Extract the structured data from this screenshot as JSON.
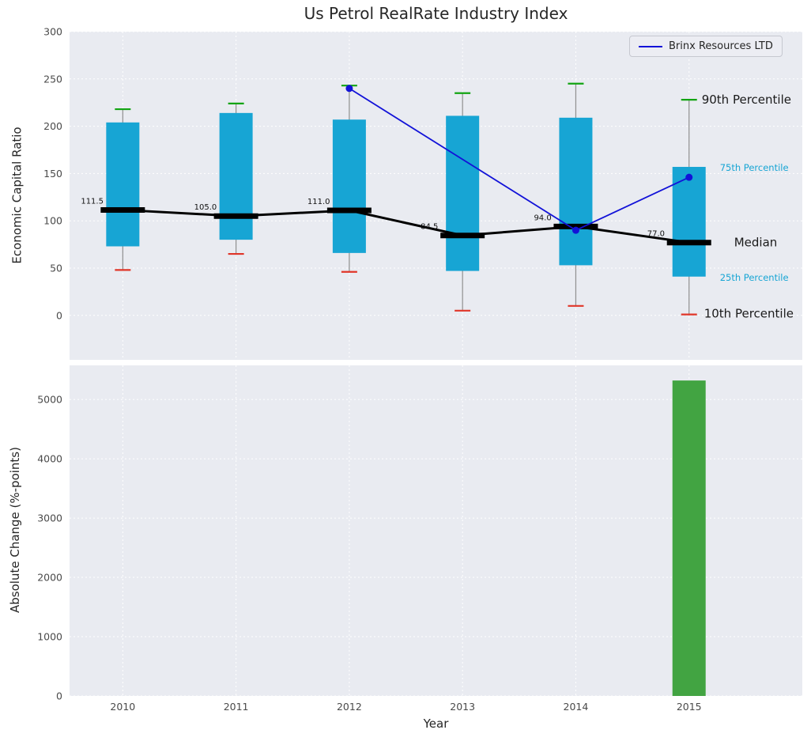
{
  "title": "Us Petrol RealRate Industry Index",
  "legend": {
    "label": "Brinx Resources LTD"
  },
  "colors": {
    "panel_bg": "#e9ebf1",
    "grid": "#ffffff",
    "box": "#17a5d4",
    "whisker": "#8f8f8f",
    "cap_high": "#12a412",
    "cap_low": "#e03528",
    "median": "#000000",
    "company": "#1212d8",
    "bar": "#42a442",
    "tick_label": "#4a4a4a",
    "annotation_dark": "#1a1a1a"
  },
  "chart_data": [
    {
      "type": "box",
      "panel": "top",
      "title": "Us Petrol RealRate Industry Index",
      "ylabel": "Economic Capital Ratio",
      "categories": [
        "2010",
        "2011",
        "2012",
        "2013",
        "2014",
        "2015"
      ],
      "ylim": [
        -47,
        300
      ],
      "yticks": [
        0,
        50,
        100,
        150,
        200,
        250,
        300
      ],
      "grid": true,
      "series": {
        "p90": [
          218,
          224,
          243,
          235,
          245,
          228
        ],
        "p75": [
          204,
          214,
          207,
          211,
          209,
          157
        ],
        "median": [
          111.5,
          105.0,
          111.0,
          84.5,
          94.0,
          77.0
        ],
        "p25": [
          73,
          80,
          66,
          47,
          53,
          41
        ],
        "p10": [
          48,
          65,
          46,
          5,
          10,
          1
        ]
      },
      "median_labels": [
        "111.5",
        "105.0",
        "111.0",
        "84.5",
        "94.0",
        "77.0"
      ],
      "overlay_line": {
        "name": "Brinx Resources LTD",
        "points": [
          {
            "x": "2012",
            "y": 240
          },
          {
            "x": "2014",
            "y": 90
          },
          {
            "x": "2015",
            "y": 146
          }
        ]
      },
      "annotations": [
        {
          "text": "90th Percentile",
          "y": 228,
          "dx": 16,
          "style": "large",
          "color": "dark"
        },
        {
          "text": "75th Percentile",
          "y": 157,
          "dx": 39,
          "style": "small",
          "color": "cyan"
        },
        {
          "text": "Median",
          "y": 77,
          "dx": 57,
          "style": "large",
          "color": "dark"
        },
        {
          "text": "25th Percentile",
          "y": 41,
          "dx": 39,
          "style": "small",
          "color": "cyan"
        },
        {
          "text": "10th Percentile",
          "y": 2,
          "dx": 19,
          "style": "large",
          "color": "dark"
        }
      ],
      "legend_position": "upper right"
    },
    {
      "type": "bar",
      "panel": "bottom",
      "ylabel": "Absolute Change (%-points)",
      "xlabel": "Year",
      "categories": [
        "2010",
        "2011",
        "2012",
        "2013",
        "2014",
        "2015"
      ],
      "values": [
        0,
        0,
        0,
        0,
        0,
        5320
      ],
      "ylim": [
        0,
        5575
      ],
      "yticks": [
        0,
        1000,
        2000,
        3000,
        4000,
        5000
      ],
      "grid": true
    }
  ]
}
